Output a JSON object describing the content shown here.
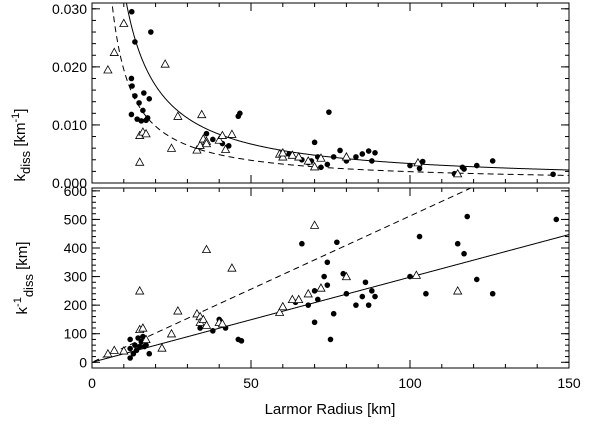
{
  "chart_data": [
    {
      "type": "scatter",
      "title": "",
      "ylabel": {
        "base": "k",
        "sub": "diss",
        "unit": " [km",
        "unit_sup": "-1",
        "unit_end": "]"
      },
      "xlim": [
        0,
        150
      ],
      "ylim": [
        0,
        0.031
      ],
      "y_ticks": [
        0.0,
        0.01,
        0.02,
        0.03
      ],
      "y_tick_labels": [
        "0.000",
        "0.010",
        "0.020",
        "0.030"
      ],
      "series": [
        {
          "marker": "filled-circle",
          "points": [
            [
              12.5,
              0.0295
            ],
            [
              13.5,
              0.0243
            ],
            [
              18.5,
              0.026
            ],
            [
              12.4,
              0.018
            ],
            [
              12.6,
              0.0167
            ],
            [
              12.4,
              0.0118
            ],
            [
              13.5,
              0.015
            ],
            [
              14.2,
              0.011
            ],
            [
              14.8,
              0.0138
            ],
            [
              15.5,
              0.0107
            ],
            [
              16,
              0.0125
            ],
            [
              16.3,
              0.0155
            ],
            [
              17,
              0.0108
            ],
            [
              17.5,
              0.0112
            ],
            [
              18,
              0.0145
            ],
            [
              36,
              0.0085
            ],
            [
              38,
              0.0075
            ],
            [
              41,
              0.0068
            ],
            [
              43,
              0.0064
            ],
            [
              46,
              0.0115
            ],
            [
              46.5,
              0.012
            ],
            [
              62,
              0.005
            ],
            [
              66,
              0.004
            ],
            [
              68,
              0.0035
            ],
            [
              69,
              0.0038
            ],
            [
              70,
              0.007
            ],
            [
              71,
              0.0045
            ],
            [
              74.5,
              0.0122
            ],
            [
              76,
              0.0045
            ],
            [
              78,
              0.0056
            ],
            [
              80,
              0.0038
            ],
            [
              83,
              0.0045
            ],
            [
              85,
              0.005
            ],
            [
              87,
              0.0055
            ],
            [
              88,
              0.0038
            ],
            [
              89,
              0.0052
            ],
            [
              100,
              0.003
            ],
            [
              103,
              0.0025
            ],
            [
              104,
              0.0037
            ],
            [
              114,
              0.0016
            ],
            [
              116.5,
              0.0027
            ],
            [
              117,
              0.0024
            ],
            [
              121,
              0.003
            ],
            [
              126,
              0.0038
            ],
            [
              145,
              0.0015
            ],
            [
              72,
              0.0027
            ],
            [
              74,
              0.0032
            ]
          ]
        },
        {
          "marker": "open-triangle",
          "points": [
            [
              5,
              0.0195
            ],
            [
              7,
              0.0225
            ],
            [
              10,
              0.0275
            ],
            [
              15,
              0.0082
            ],
            [
              15,
              0.0036
            ],
            [
              16,
              0.0088
            ],
            [
              17,
              0.0085
            ],
            [
              23,
              0.0205
            ],
            [
              25,
              0.006
            ],
            [
              27,
              0.0115
            ],
            [
              33,
              0.0057
            ],
            [
              34,
              0.0065
            ],
            [
              34.5,
              0.0118
            ],
            [
              35,
              0.0076
            ],
            [
              36,
              0.0072
            ],
            [
              36,
              0.0068
            ],
            [
              40,
              0.0074
            ],
            [
              41,
              0.0082
            ],
            [
              42,
              0.0058
            ],
            [
              44,
              0.0084
            ],
            [
              59,
              0.005
            ],
            [
              60,
              0.0045
            ],
            [
              60,
              0.0052
            ],
            [
              63,
              0.0048
            ],
            [
              65,
              0.0045
            ],
            [
              68,
              0.0038
            ],
            [
              70,
              0.0028
            ],
            [
              72,
              0.0043
            ],
            [
              80,
              0.0045
            ],
            [
              102.5,
              0.0035
            ],
            [
              115,
              0.0016
            ]
          ]
        },
        {
          "name": "",
          "line": "solid",
          "formula": "1/(2.98*x)"
        },
        {
          "name": "",
          "line": "dashed",
          "formula": "1/(5.12*x)"
        }
      ]
    },
    {
      "type": "scatter",
      "title": "",
      "ylabel": {
        "base": "k",
        "sup": "-1",
        "sub": "diss",
        "unit": " [km]"
      },
      "xlabel": "Larmor Radius [km]",
      "xlim": [
        0,
        150
      ],
      "ylim": [
        -20,
        610
      ],
      "x_ticks": [
        0,
        50,
        100,
        150
      ],
      "x_tick_labels": [
        "0",
        "50",
        "100",
        "150"
      ],
      "y_ticks": [
        0,
        100,
        200,
        300,
        400,
        500,
        600
      ],
      "y_tick_labels": [
        "0",
        "100",
        "200",
        "300",
        "400",
        "500",
        "600"
      ],
      "series": [
        {
          "marker": "filled-circle",
          "points": [
            [
              12,
              15
            ],
            [
              12,
              48
            ],
            [
              12,
              80
            ],
            [
              13,
              30
            ],
            [
              13.5,
              60
            ],
            [
              14,
              42
            ],
            [
              14.5,
              85
            ],
            [
              15,
              55
            ],
            [
              15.5,
              72
            ],
            [
              16,
              90
            ],
            [
              16.5,
              55
            ],
            [
              17,
              60
            ],
            [
              18,
              30
            ],
            [
              34,
              120
            ],
            [
              38,
              110
            ],
            [
              40,
              150
            ],
            [
              42,
              120
            ],
            [
              46,
              80
            ],
            [
              47,
              75
            ],
            [
              64,
              210
            ],
            [
              66,
              415
            ],
            [
              68,
              200
            ],
            [
              70,
              140
            ],
            [
              70,
              250
            ],
            [
              71,
              220
            ],
            [
              73,
              300
            ],
            [
              74,
              350
            ],
            [
              74,
              270
            ],
            [
              75,
              80
            ],
            [
              76,
              170
            ],
            [
              77,
              420
            ],
            [
              79,
              310
            ],
            [
              80,
              240
            ],
            [
              83,
              200
            ],
            [
              85,
              230
            ],
            [
              86,
              280
            ],
            [
              87,
              200
            ],
            [
              88,
              250
            ],
            [
              89,
              230
            ],
            [
              100,
              300
            ],
            [
              103,
              440
            ],
            [
              105,
              240
            ],
            [
              115,
              415
            ],
            [
              117,
              380
            ],
            [
              118,
              510
            ],
            [
              121,
              290
            ],
            [
              126,
              240
            ],
            [
              146,
              500
            ]
          ]
        },
        {
          "marker": "open-triangle",
          "points": [
            [
              5,
              30
            ],
            [
              7,
              42
            ],
            [
              10,
              40
            ],
            [
              15,
              115
            ],
            [
              15,
              250
            ],
            [
              16,
              120
            ],
            [
              17,
              80
            ],
            [
              22,
              50
            ],
            [
              25,
              100
            ],
            [
              27,
              180
            ],
            [
              33,
              170
            ],
            [
              34,
              160
            ],
            [
              34,
              140
            ],
            [
              35,
              150
            ],
            [
              36,
              130
            ],
            [
              36,
              395
            ],
            [
              40,
              140
            ],
            [
              41,
              135
            ],
            [
              44,
              330
            ],
            [
              59,
              175
            ],
            [
              60,
              195
            ],
            [
              63,
              220
            ],
            [
              65,
              220
            ],
            [
              68,
              240
            ],
            [
              70,
              480
            ],
            [
              72,
              260
            ],
            [
              80,
              300
            ],
            [
              102,
              305
            ],
            [
              115,
              250
            ]
          ]
        },
        {
          "name": "",
          "line": "solid",
          "formula": "2.98*x"
        },
        {
          "name": "",
          "line": "dashed",
          "formula": "5.12*x"
        }
      ]
    }
  ]
}
